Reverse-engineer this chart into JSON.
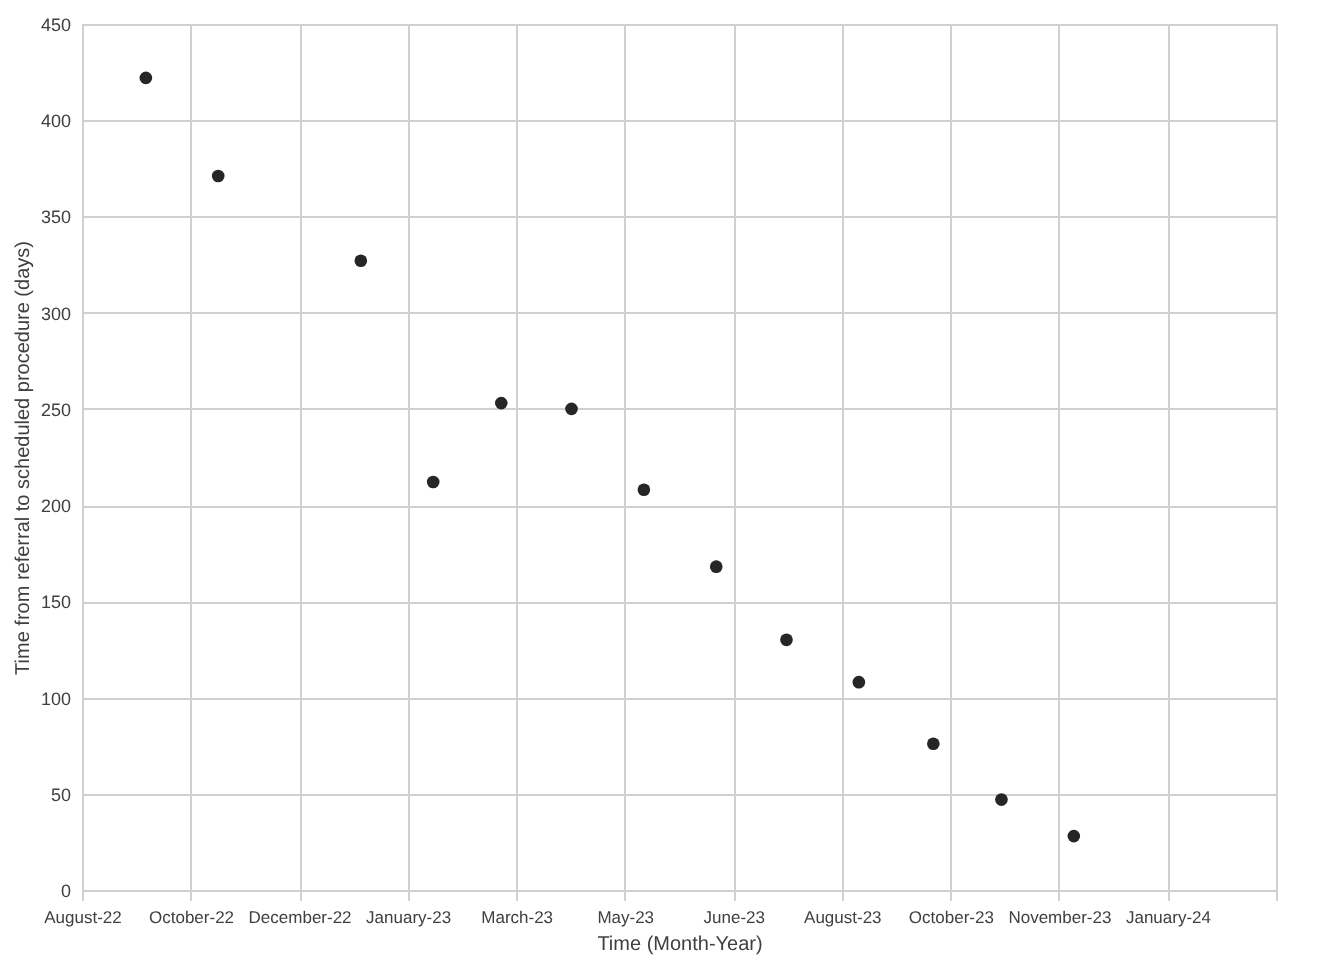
{
  "chart_data": {
    "type": "scatter",
    "xlabel": "Time (Month-Year)",
    "ylabel": "Time from referral to scheduled procedure (days)",
    "x": [
      "2022-09-24",
      "2022-10-28",
      "2023-01-03",
      "2023-02-06",
      "2023-03-10",
      "2023-04-12",
      "2023-05-16",
      "2023-06-19",
      "2023-07-22",
      "2023-08-25",
      "2023-09-29",
      "2023-10-31",
      "2023-12-04"
    ],
    "series": [
      {
        "color": "#262626",
        "values": [
          422,
          371,
          327,
          212,
          253,
          250,
          208,
          168,
          130,
          108,
          76,
          47,
          28
        ]
      }
    ],
    "marker": "circle",
    "grid": true,
    "xlim": [
      "2022-08-25",
      "2024-03-08"
    ],
    "xticks": [
      {
        "value": "2022-08-25",
        "label": "August-22"
      },
      {
        "value": "2022-10-15",
        "label": "October-22"
      },
      {
        "value": "2022-12-05",
        "label": "December-22"
      },
      {
        "value": "2023-01-25",
        "label": "January-23"
      },
      {
        "value": "2023-03-17",
        "label": "March-23"
      },
      {
        "value": "2023-05-07",
        "label": "May-23"
      },
      {
        "value": "2023-06-27",
        "label": "June-23"
      },
      {
        "value": "2023-08-17",
        "label": "August-23"
      },
      {
        "value": "2023-10-07",
        "label": "October-23"
      },
      {
        "value": "2023-11-27",
        "label": "November-23"
      },
      {
        "value": "2024-01-17",
        "label": "January-24"
      },
      {
        "value": "2024-03-08",
        "label": null
      }
    ],
    "ylim": [
      0,
      450
    ],
    "yticks": [
      0,
      50,
      100,
      150,
      200,
      250,
      300,
      350,
      400,
      450
    ]
  }
}
